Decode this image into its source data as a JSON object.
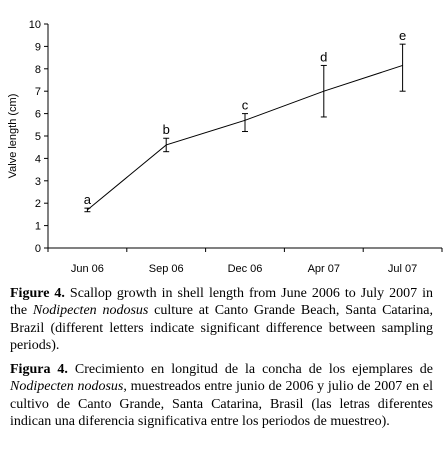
{
  "chart_data": {
    "type": "line",
    "categories": [
      "Jun 06",
      "Sep 06",
      "Dec 06",
      "Apr 07",
      "Jul 07"
    ],
    "x": [
      0,
      1,
      2,
      3,
      4
    ],
    "values": [
      1.7,
      4.6,
      5.7,
      7.0,
      8.15
    ],
    "error_low": [
      1.62,
      4.3,
      5.2,
      5.85,
      7.0
    ],
    "error_high": [
      1.78,
      4.9,
      6.0,
      8.15,
      9.1
    ],
    "significance_letters": [
      "a",
      "b",
      "c",
      "d",
      "e"
    ],
    "ylabel": "Valve length (cm)",
    "xlabel": "",
    "ylim": [
      0,
      10
    ],
    "yticks": [
      0,
      1,
      2,
      3,
      4,
      5,
      6,
      7,
      8,
      9,
      10
    ],
    "grid": false,
    "legend": "none",
    "line_color": "#000000"
  },
  "caption_en": {
    "label": "Figure 4.",
    "text_1": " Scallop growth in shell length from June 2006 to July 2007 in the ",
    "species": "Nodipecten nodosus",
    "text_2": " culture at Canto Grande Beach, Santa Catarina, Brazil (different letters indicate significant difference between sampling periods)."
  },
  "caption_es": {
    "label": "Figura 4.",
    "text_1": " Crecimiento en longitud de la concha de los ejemplares de ",
    "species": "Nodipecten nodosus",
    "text_2": ", muestreados entre junio de 2006 y julio de 2007 en el cultivo de Canto Grande, Santa Catarina, Brasil (las letras diferentes indican una diferencia significativa entre los periodos de muestreo)."
  }
}
